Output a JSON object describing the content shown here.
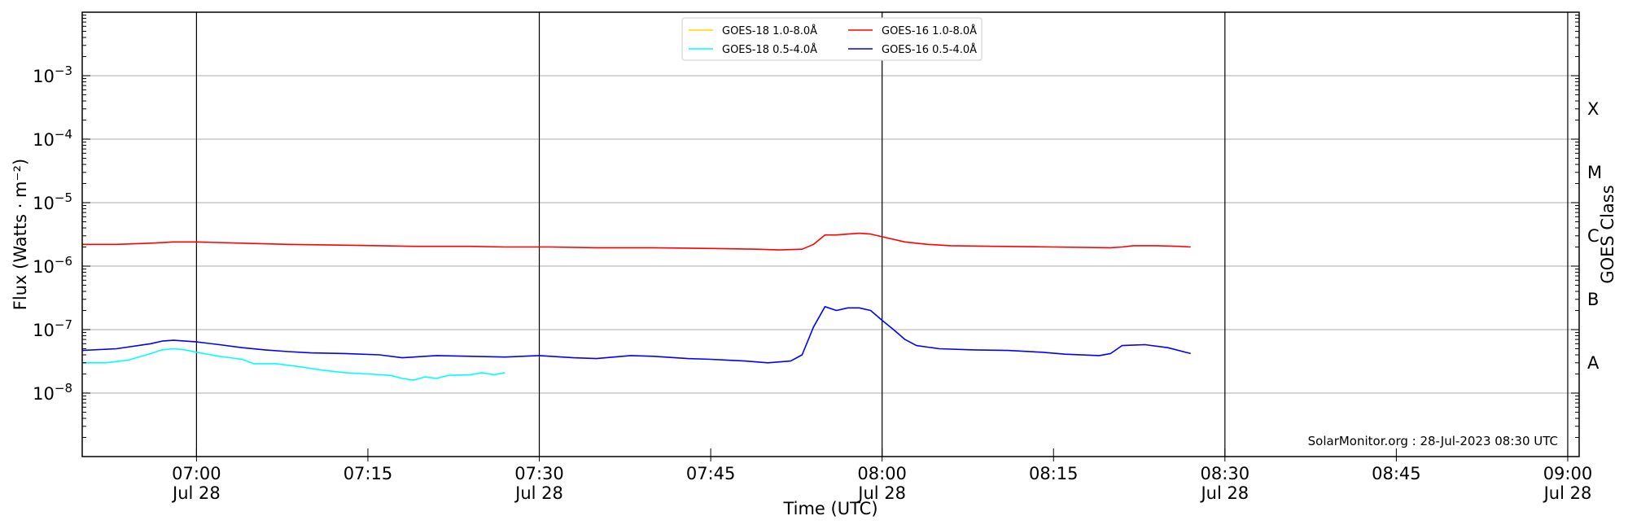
{
  "chart_data": {
    "type": "line",
    "xlabel": "Time (UTC)",
    "ylabel": "Flux (Watts · m⁻²)",
    "right_axis_label": "GOES Class",
    "y_scale": "log",
    "ylim": [
      1e-09,
      0.01
    ],
    "xlim": [
      "06:50",
      "09:01"
    ],
    "grid": "horizontal at decades",
    "vertical_lines": [
      "07:00",
      "07:30",
      "08:00",
      "08:30",
      "09:00"
    ],
    "x_ticks": [
      {
        "time": "07:00",
        "label": "07:00",
        "date": "Jul 28"
      },
      {
        "time": "07:15",
        "label": "07:15",
        "date": ""
      },
      {
        "time": "07:30",
        "label": "07:30",
        "date": "Jul 28"
      },
      {
        "time": "07:45",
        "label": "07:45",
        "date": ""
      },
      {
        "time": "08:00",
        "label": "08:00",
        "date": "Jul 28"
      },
      {
        "time": "08:15",
        "label": "08:15",
        "date": ""
      },
      {
        "time": "08:30",
        "label": "08:30",
        "date": "Jul 28"
      },
      {
        "time": "08:45",
        "label": "08:45",
        "date": ""
      },
      {
        "time": "09:00",
        "label": "09:00",
        "date": "Jul 28"
      }
    ],
    "y_ticks": [
      {
        "value": 1e-08,
        "base": "10",
        "exp": "−8"
      },
      {
        "value": 1e-07,
        "base": "10",
        "exp": "−7"
      },
      {
        "value": 1e-06,
        "base": "10",
        "exp": "−6"
      },
      {
        "value": 1e-05,
        "base": "10",
        "exp": "−5"
      },
      {
        "value": 0.0001,
        "base": "10",
        "exp": "−4"
      },
      {
        "value": 0.001,
        "base": "10",
        "exp": "−3"
      }
    ],
    "goes_classes": [
      {
        "label": "A",
        "value": 3e-08
      },
      {
        "label": "B",
        "value": 3e-07
      },
      {
        "label": "C",
        "value": 3e-06
      },
      {
        "label": "M",
        "value": 3e-05
      },
      {
        "label": "X",
        "value": 0.0003
      }
    ],
    "legend_position": "top-center",
    "legend": [
      {
        "name": "GOES-18 1.0-8.0Å",
        "color": "#ffd700"
      },
      {
        "name": "GOES-18 0.5-4.0Å",
        "color": "#00ffff"
      },
      {
        "name": "GOES-16 1.0-8.0Å",
        "color": "#ff0000"
      },
      {
        "name": "GOES-16 0.5-4.0Å",
        "color": "#0000ff"
      }
    ],
    "annotation": "SolarMonitor.org : 28-Jul-2023 08:30 UTC",
    "series": [
      {
        "name": "GOES-18 1.0-8.0Å",
        "color": "#ffd700",
        "points": []
      },
      {
        "name": "GOES-16 1.0-8.0Å",
        "color": "#ff0000",
        "points": [
          [
            "06:50",
            2.2e-06
          ],
          [
            "06:53",
            2.2e-06
          ],
          [
            "06:56",
            2.3e-06
          ],
          [
            "06:58",
            2.4e-06
          ],
          [
            "07:00",
            2.4e-06
          ],
          [
            "07:04",
            2.3e-06
          ],
          [
            "07:08",
            2.2e-06
          ],
          [
            "07:12",
            2.15e-06
          ],
          [
            "07:16",
            2.1e-06
          ],
          [
            "07:19",
            2.05e-06
          ],
          [
            "07:24",
            2.05e-06
          ],
          [
            "07:27",
            2e-06
          ],
          [
            "07:31",
            2e-06
          ],
          [
            "07:35",
            1.95e-06
          ],
          [
            "07:40",
            1.95e-06
          ],
          [
            "07:45",
            1.9e-06
          ],
          [
            "07:49",
            1.85e-06
          ],
          [
            "07:51",
            1.8e-06
          ],
          [
            "07:53",
            1.85e-06
          ],
          [
            "07:54",
            2.2e-06
          ],
          [
            "07:55",
            3.1e-06
          ],
          [
            "07:56",
            3.1e-06
          ],
          [
            "07:58",
            3.3e-06
          ],
          [
            "07:59",
            3.2e-06
          ],
          [
            "08:00",
            2.9e-06
          ],
          [
            "08:02",
            2.4e-06
          ],
          [
            "08:04",
            2.2e-06
          ],
          [
            "08:06",
            2.1e-06
          ],
          [
            "08:10",
            2.05e-06
          ],
          [
            "08:15",
            2e-06
          ],
          [
            "08:20",
            1.95e-06
          ],
          [
            "08:21",
            2e-06
          ],
          [
            "08:22",
            2.1e-06
          ],
          [
            "08:24",
            2.1e-06
          ],
          [
            "08:26",
            2.05e-06
          ],
          [
            "08:27",
            2e-06
          ]
        ]
      },
      {
        "name": "GOES-18 0.5-4.0Å",
        "color": "#00ffff",
        "points": [
          [
            "06:50",
            3e-08
          ],
          [
            "06:52",
            3e-08
          ],
          [
            "06:54",
            3.3e-08
          ],
          [
            "06:56",
            4.2e-08
          ],
          [
            "06:57",
            4.8e-08
          ],
          [
            "06:58",
            5e-08
          ],
          [
            "06:59",
            4.8e-08
          ],
          [
            "07:00",
            4.4e-08
          ],
          [
            "07:02",
            3.8e-08
          ],
          [
            "07:04",
            3.4e-08
          ],
          [
            "07:05",
            2.9e-08
          ],
          [
            "07:07",
            2.9e-08
          ],
          [
            "07:09",
            2.6e-08
          ],
          [
            "07:11",
            2.3e-08
          ],
          [
            "07:13",
            2.1e-08
          ],
          [
            "07:15",
            2e-08
          ],
          [
            "07:17",
            1.9e-08
          ],
          [
            "07:18",
            1.7e-08
          ],
          [
            "07:19",
            1.6e-08
          ],
          [
            "07:20",
            1.8e-08
          ],
          [
            "07:21",
            1.7e-08
          ],
          [
            "07:22",
            1.9e-08
          ],
          [
            "07:24",
            1.95e-08
          ],
          [
            "07:25",
            2.1e-08
          ],
          [
            "07:26",
            1.95e-08
          ],
          [
            "07:27",
            2.1e-08
          ]
        ]
      },
      {
        "name": "GOES-16 0.5-4.0Å",
        "color": "#0000ff",
        "points": [
          [
            "06:50",
            4.7e-08
          ],
          [
            "06:53",
            5e-08
          ],
          [
            "06:56",
            6e-08
          ],
          [
            "06:57",
            6.6e-08
          ],
          [
            "06:58",
            6.8e-08
          ],
          [
            "07:00",
            6.4e-08
          ],
          [
            "07:02",
            5.8e-08
          ],
          [
            "07:04",
            5.2e-08
          ],
          [
            "07:06",
            4.8e-08
          ],
          [
            "07:08",
            4.5e-08
          ],
          [
            "07:10",
            4.3e-08
          ],
          [
            "07:13",
            4.2e-08
          ],
          [
            "07:16",
            4e-08
          ],
          [
            "07:18",
            3.6e-08
          ],
          [
            "07:21",
            3.9e-08
          ],
          [
            "07:24",
            3.8e-08
          ],
          [
            "07:27",
            3.7e-08
          ],
          [
            "07:30",
            3.9e-08
          ],
          [
            "07:33",
            3.6e-08
          ],
          [
            "07:35",
            3.5e-08
          ],
          [
            "07:38",
            3.9e-08
          ],
          [
            "07:40",
            3.8e-08
          ],
          [
            "07:43",
            3.5e-08
          ],
          [
            "07:45",
            3.4e-08
          ],
          [
            "07:48",
            3.2e-08
          ],
          [
            "07:50",
            3e-08
          ],
          [
            "07:52",
            3.2e-08
          ],
          [
            "07:53",
            4e-08
          ],
          [
            "07:54",
            1.1e-07
          ],
          [
            "07:55",
            2.3e-07
          ],
          [
            "07:56",
            2e-07
          ],
          [
            "07:57",
            2.2e-07
          ],
          [
            "07:58",
            2.2e-07
          ],
          [
            "07:59",
            2e-07
          ],
          [
            "08:00",
            1.4e-07
          ],
          [
            "08:01",
            1e-07
          ],
          [
            "08:02",
            7e-08
          ],
          [
            "08:03",
            5.6e-08
          ],
          [
            "08:05",
            5e-08
          ],
          [
            "08:08",
            4.8e-08
          ],
          [
            "08:11",
            4.7e-08
          ],
          [
            "08:14",
            4.4e-08
          ],
          [
            "08:16",
            4.1e-08
          ],
          [
            "08:19",
            3.9e-08
          ],
          [
            "08:20",
            4.2e-08
          ],
          [
            "08:21",
            5.6e-08
          ],
          [
            "08:23",
            5.8e-08
          ],
          [
            "08:25",
            5.2e-08
          ],
          [
            "08:27",
            4.2e-08
          ]
        ]
      }
    ]
  }
}
